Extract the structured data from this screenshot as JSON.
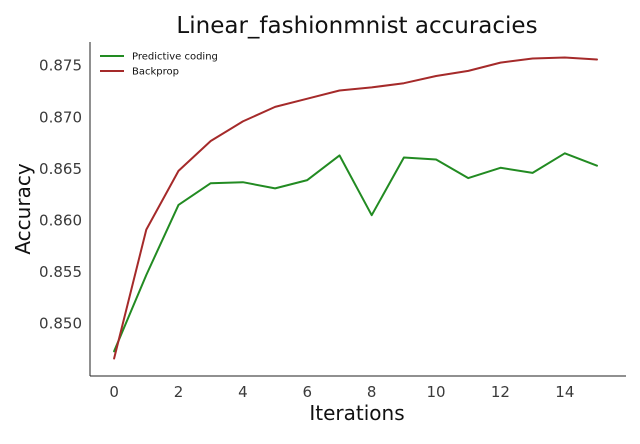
{
  "chart_data": {
    "type": "line",
    "title": "Linear_fashionmnist accuracies",
    "xlabel": "Iterations",
    "ylabel": "Accuracy",
    "x": [
      0,
      1,
      2,
      3,
      4,
      5,
      6,
      7,
      8,
      9,
      10,
      11,
      12,
      13,
      14,
      15
    ],
    "xlim": [
      -0.75,
      15.9
    ],
    "ylim": [
      0.8449,
      0.8773
    ],
    "x_ticks": [
      0,
      2,
      4,
      6,
      8,
      10,
      12,
      14
    ],
    "x_tick_labels": [
      "0",
      "2",
      "4",
      "6",
      "8",
      "10",
      "12",
      "14"
    ],
    "y_ticks": [
      0.85,
      0.855,
      0.86,
      0.865,
      0.87,
      0.875
    ],
    "y_tick_labels": [
      "0.850",
      "0.855",
      "0.860",
      "0.865",
      "0.870",
      "0.875"
    ],
    "grid": false,
    "legend_position": "top-left",
    "series": [
      {
        "name": "Predictive coding",
        "color": "#228b22",
        "values": [
          0.8473,
          0.8547,
          0.8615,
          0.8636,
          0.8637,
          0.8631,
          0.8639,
          0.8663,
          0.8605,
          0.8661,
          0.8659,
          0.8641,
          0.8651,
          0.8646,
          0.8665,
          0.8653
        ]
      },
      {
        "name": "Backprop",
        "color": "#a52a2a",
        "values": [
          0.8466,
          0.8591,
          0.8648,
          0.8677,
          0.8696,
          0.871,
          0.8718,
          0.8726,
          0.8729,
          0.8733,
          0.874,
          0.8745,
          0.8753,
          0.8757,
          0.8758,
          0.8756
        ]
      }
    ]
  }
}
